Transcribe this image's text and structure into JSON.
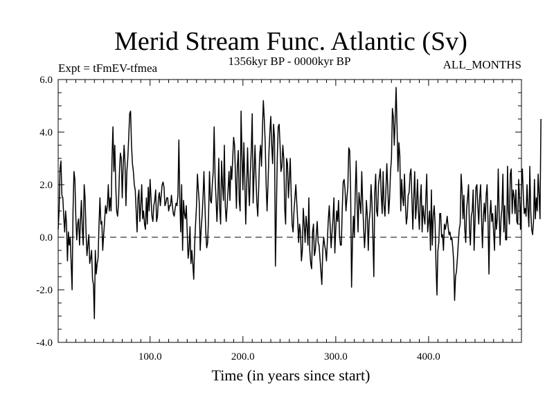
{
  "chart_data": {
    "type": "line",
    "title": "Merid Stream Func. Atlantic (Sv)",
    "subtitle_left": "Expt = tFmEV-tfmea",
    "subtitle_center": "1356kyr BP - 0000kyr BP",
    "subtitle_right": "ALL_MONTHS",
    "xlabel": "Time (in years since start)",
    "ylabel": "",
    "xlim": [
      1,
      500
    ],
    "ylim": [
      -4.0,
      6.0
    ],
    "x_ticks": [
      100,
      200,
      300,
      400
    ],
    "x_tick_labels": [
      "100.0",
      "200.0",
      "300.0",
      "400.0"
    ],
    "y_ticks": [
      -4,
      -2,
      0,
      2,
      4,
      6
    ],
    "y_tick_labels": [
      "-4.0",
      "-2.0",
      "0.0",
      "2.0",
      "4.0",
      "6.0"
    ],
    "reference_line": {
      "y": 0.0,
      "style": "dashed"
    },
    "series": [
      {
        "name": "Merid Stream Func. Atlantic",
        "x_start": 1,
        "x_step": 1,
        "values": [
          0.3,
          1.0,
          2.6,
          2.9,
          1.6,
          1.5,
          0.8,
          0.2,
          1.0,
          0.5,
          -0.9,
          0.2,
          -0.3,
          0.0,
          -1.0,
          -2.0,
          1.0,
          2.5,
          2.2,
          0.8,
          -0.1,
          0.5,
          0.7,
          -0.3,
          0.6,
          1.4,
          0.3,
          -0.3,
          2.0,
          1.5,
          0.2,
          -0.7,
          -0.3,
          0.1,
          -1.0,
          -0.8,
          -0.5,
          -1.6,
          -1.8,
          -3.1,
          -0.5,
          -1.4,
          -1.0,
          -0.8,
          0.5,
          1.5,
          0.5,
          0.6,
          -0.5,
          0.1,
          0.6,
          1.2,
          0.9,
          1.2,
          2.0,
          1.0,
          1.5,
          1.0,
          3.0,
          4.2,
          2.5,
          3.5,
          2.0,
          1.0,
          0.8,
          1.3,
          2.5,
          3.2,
          3.0,
          1.5,
          2.7,
          3.5,
          2.8,
          1.2,
          2.5,
          3.0,
          3.8,
          4.7,
          4.8,
          3.5,
          2.8,
          2.5,
          2.0,
          1.8,
          1.0,
          0.2,
          1.5,
          1.8,
          0.6,
          1.2,
          2.0,
          0.7,
          1.0,
          0.5,
          0.3,
          1.5,
          0.5,
          1.9,
          1.0,
          2.2,
          1.5,
          0.8,
          0.6,
          1.2,
          1.4,
          1.8,
          0.6,
          0.8,
          1.5,
          1.7,
          1.2,
          1.6,
          2.0,
          2.1,
          1.9,
          1.2,
          1.3,
          1.5,
          1.5,
          1.0,
          1.2,
          1.2,
          1.6,
          1.2,
          0.9,
          0.8,
          1.1,
          1.3,
          1.2,
          1.6,
          3.7,
          1.5,
          0.2,
          2.0,
          -0.5,
          1.4,
          0.9,
          0.7,
          1.2,
          0.2,
          -0.8,
          -0.4,
          0.4,
          -1.0,
          -0.5,
          -1.0,
          -1.6,
          -0.3,
          0.5,
          1.2,
          2.4,
          1.8,
          1.3,
          -0.5,
          0.3,
          0.8,
          1.5,
          2.5,
          1.3,
          0.2,
          -0.4,
          -0.2,
          0.8,
          2.5,
          1.4,
          1.3,
          2.0,
          2.5,
          4.2,
          2.3,
          1.5,
          0.6,
          1.5,
          3.0,
          1.1,
          0.5,
          2.9,
          2.0,
          1.4,
          3.5,
          1.2,
          0.6,
          1.2,
          1.8,
          2.5,
          1.4,
          2.7,
          2.2,
          3.0,
          3.8,
          3.5,
          2.3,
          1.1,
          2.7,
          3.3,
          1.4,
          1.0,
          4.8,
          3.1,
          1.8,
          3.6,
          2.2,
          0.5,
          1.9,
          3.4,
          2.0,
          1.2,
          2.5,
          3.3,
          4.7,
          1.3,
          2.4,
          3.5,
          2.3,
          1.3,
          0.8,
          1.9,
          3.1,
          3.5,
          2.7,
          4.1,
          5.2,
          4.5,
          3.6,
          2.0,
          1.0,
          2.0,
          3.2,
          4.0,
          4.6,
          3.5,
          2.8,
          4.3,
          3.8,
          -1.1,
          0.9,
          3.0,
          4.2,
          4.3,
          3.5,
          2.5,
          2.7,
          3.5,
          3.0,
          1.1,
          0.5,
          3.0,
          2.8,
          1.5,
          2.2,
          3.0,
          1.6,
          0.5,
          0.2,
          1.0,
          1.5,
          2.0,
          1.3,
          0.6,
          -0.2,
          0.5,
          0.2,
          -0.9,
          -0.5,
          1.1,
          0.5,
          -0.2,
          0.8,
          0.4,
          -0.3,
          1.5,
          -0.5,
          -1.0,
          -1.2,
          0.2,
          0.5,
          -0.7,
          -0.5,
          0.1,
          0.6,
          -0.2,
          -0.3,
          -0.8,
          -1.3,
          -1.8,
          -0.5,
          0.0,
          -0.3,
          -0.5,
          -0.9,
          -0.1,
          0.7,
          1.2,
          0.4,
          -0.4,
          0.2,
          0.7,
          1.5,
          -0.6,
          0.3,
          1.0,
          0.6,
          1.4,
          0.1,
          -0.3,
          -0.3,
          1.1,
          2.1,
          2.2,
          1.8,
          1.0,
          1.5,
          1.9,
          3.4,
          3.3,
          1.8,
          -1.9,
          -0.2,
          0.8,
          0.0,
          1.7,
          2.9,
          1.3,
          0.2,
          1.7,
          1.3,
          0.9,
          2.5,
          1.3,
          0.4,
          -0.4,
          0.3,
          1.4,
          0.8,
          -0.5,
          0.6,
          1.0,
          2.0,
          1.3,
          0.0,
          -1.5,
          1.7,
          2.4,
          1.0,
          0.8,
          2.0,
          2.3,
          2.6,
          1.6,
          0.9,
          2.5,
          1.2,
          0.8,
          1.8,
          2.8,
          1.9,
          0.9,
          1.5,
          2.5,
          3.0,
          4.9,
          4.6,
          3.5,
          4.5,
          5.7,
          4.2,
          2.5,
          3.6,
          3.1,
          1.0,
          2.2,
          1.5,
          1.2,
          2.4,
          1.3,
          0.5,
          0.8,
          1.6,
          1.7,
          2.4,
          2.6,
          1.5,
          0.3,
          1.5,
          2.5,
          0.7,
          1.2,
          2.2,
          1.0,
          0.3,
          1.4,
          2.0,
          0.2,
          1.2,
          0.8,
          0.5,
          1.5,
          2.4,
          0.2,
          0.6,
          1.0,
          -0.5,
          1.8,
          -0.3,
          0.8,
          1.2,
          0.5,
          -1.1,
          -2.2,
          -0.5,
          -0.2,
          0.9,
          0.9,
          0.0,
          0.1,
          -0.5,
          0.5,
          0.3,
          0.5,
          0.8,
          0.4,
          0.1,
          0.2,
          -0.1,
          0.0,
          -0.4,
          -0.9,
          -2.4,
          -1.5,
          -1.3,
          -0.8,
          -0.2,
          0.3,
          0.5,
          2.4,
          1.8,
          0.7,
          1.6,
          0.3,
          -0.2,
          1.1,
          1.5,
          2.0,
          0.3,
          -0.3,
          0.8,
          1.0,
          1.8,
          -0.5,
          0.6,
          1.9,
          2.0,
          1.2,
          0.5,
          1.5,
          2.0,
          0.7,
          -0.4,
          0.8,
          1.3,
          0.6,
          1.6,
          2.0,
          0.6,
          -1.4,
          0.8,
          1.4,
          0.6,
          0.9,
          0.2,
          -0.5,
          1.2,
          0.3,
          0.7,
          2.6,
          0.9,
          -0.3,
          0.7,
          1.1,
          2.4,
          0.2,
          1.2,
          -0.1,
          -0.1,
          2.7,
          1.0,
          0.5,
          2.4,
          2.6,
          0.9,
          1.8,
          1.6,
          0.9,
          1.8,
          0.6,
          0.5,
          2.2,
          1.5,
          0.3,
          1.9,
          2.6,
          1.6,
          0.9,
          1.1,
          0.8,
          2.0,
          1.1,
          0.4,
          2.7,
          1.0,
          0.3,
          0.1,
          0.6,
          2.2,
          0.7,
          1.5,
          1.0,
          2.4,
          1.6,
          0.7,
          4.5
        ]
      }
    ]
  }
}
